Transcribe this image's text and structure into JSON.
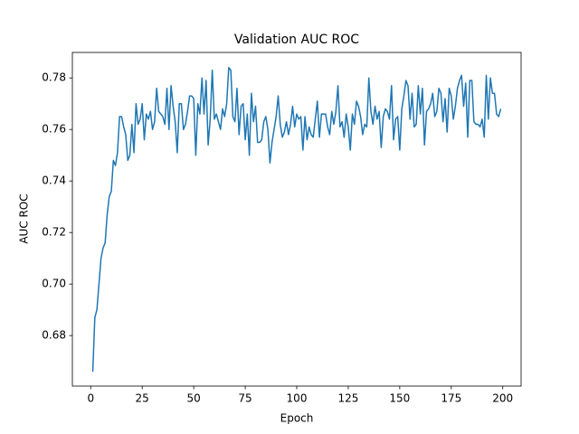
{
  "chart_data": {
    "type": "line",
    "title": "Validation AUC ROC",
    "x_label": "Epoch",
    "y_label": "AUC ROC",
    "color": "#1f77b4",
    "x": [
      1,
      2,
      3,
      4,
      5,
      6,
      7,
      8,
      9,
      10,
      11,
      12,
      13,
      14,
      15,
      16,
      17,
      18,
      19,
      20,
      21,
      22,
      23,
      24,
      25,
      26,
      27,
      28,
      29,
      30,
      31,
      32,
      33,
      34,
      35,
      36,
      37,
      38,
      39,
      40,
      41,
      42,
      43,
      44,
      45,
      46,
      47,
      48,
      49,
      50,
      51,
      52,
      53,
      54,
      55,
      56,
      57,
      58,
      59,
      60,
      61,
      62,
      63,
      64,
      65,
      66,
      67,
      68,
      69,
      70,
      71,
      72,
      73,
      74,
      75,
      76,
      77,
      78,
      79,
      80,
      81,
      82,
      83,
      84,
      85,
      86,
      87,
      88,
      89,
      90,
      91,
      92,
      93,
      94,
      95,
      96,
      97,
      98,
      99,
      100,
      101,
      102,
      103,
      104,
      105,
      106,
      107,
      108,
      109,
      110,
      111,
      112,
      113,
      114,
      115,
      116,
      117,
      118,
      119,
      120,
      121,
      122,
      123,
      124,
      125,
      126,
      127,
      128,
      129,
      130,
      131,
      132,
      133,
      134,
      135,
      136,
      137,
      138,
      139,
      140,
      141,
      142,
      143,
      144,
      145,
      146,
      147,
      148,
      149,
      150,
      151,
      152,
      153,
      154,
      155,
      156,
      157,
      158,
      159,
      160,
      161,
      162,
      163,
      164,
      165,
      166,
      167,
      168,
      169,
      170,
      171,
      172,
      173,
      174,
      175,
      176,
      177,
      178,
      179,
      180,
      181,
      182,
      183,
      184,
      185,
      186,
      187,
      188,
      189,
      190,
      191,
      192,
      193,
      194,
      195,
      196,
      197,
      198,
      199
    ],
    "values": [
      0.666,
      0.687,
      0.69,
      0.7,
      0.71,
      0.714,
      0.716,
      0.727,
      0.734,
      0.736,
      0.748,
      0.746,
      0.751,
      0.765,
      0.765,
      0.761,
      0.758,
      0.748,
      0.75,
      0.762,
      0.751,
      0.77,
      0.762,
      0.764,
      0.77,
      0.756,
      0.766,
      0.764,
      0.767,
      0.76,
      0.763,
      0.776,
      0.767,
      0.766,
      0.765,
      0.762,
      0.776,
      0.76,
      0.777,
      0.769,
      0.763,
      0.751,
      0.77,
      0.77,
      0.76,
      0.762,
      0.767,
      0.773,
      0.773,
      0.772,
      0.75,
      0.77,
      0.766,
      0.78,
      0.766,
      0.779,
      0.754,
      0.764,
      0.783,
      0.764,
      0.766,
      0.763,
      0.76,
      0.768,
      0.765,
      0.77,
      0.784,
      0.783,
      0.765,
      0.763,
      0.776,
      0.758,
      0.769,
      0.77,
      0.756,
      0.766,
      0.75,
      0.774,
      0.763,
      0.769,
      0.755,
      0.755,
      0.756,
      0.763,
      0.765,
      0.76,
      0.747,
      0.755,
      0.76,
      0.765,
      0.773,
      0.762,
      0.757,
      0.759,
      0.763,
      0.758,
      0.762,
      0.769,
      0.761,
      0.766,
      0.764,
      0.765,
      0.752,
      0.765,
      0.756,
      0.761,
      0.758,
      0.757,
      0.764,
      0.771,
      0.757,
      0.766,
      0.766,
      0.766,
      0.761,
      0.758,
      0.767,
      0.762,
      0.767,
      0.777,
      0.761,
      0.763,
      0.757,
      0.766,
      0.761,
      0.752,
      0.766,
      0.762,
      0.771,
      0.769,
      0.765,
      0.758,
      0.762,
      0.761,
      0.78,
      0.767,
      0.762,
      0.769,
      0.764,
      0.767,
      0.753,
      0.765,
      0.768,
      0.767,
      0.764,
      0.777,
      0.756,
      0.764,
      0.765,
      0.752,
      0.768,
      0.773,
      0.779,
      0.777,
      0.764,
      0.774,
      0.761,
      0.762,
      0.777,
      0.766,
      0.776,
      0.754,
      0.767,
      0.768,
      0.77,
      0.774,
      0.765,
      0.767,
      0.776,
      0.774,
      0.763,
      0.772,
      0.759,
      0.776,
      0.773,
      0.764,
      0.769,
      0.776,
      0.779,
      0.781,
      0.769,
      0.778,
      0.757,
      0.779,
      0.779,
      0.763,
      0.762,
      0.762,
      0.761,
      0.764,
      0.757,
      0.781,
      0.764,
      0.78,
      0.774,
      0.774,
      0.766,
      0.765,
      0.768
    ],
    "xlim": [
      -8.9,
      208.9
    ],
    "xticks": [
      0,
      25,
      50,
      75,
      100,
      125,
      150,
      175,
      200
    ],
    "ylim": [
      0.6604,
      0.7899
    ],
    "yticks": [
      0.68,
      {
        "value": 0.7,
        "label": "0.70"
      },
      0.72,
      0.74,
      0.76,
      0.78
    ]
  }
}
